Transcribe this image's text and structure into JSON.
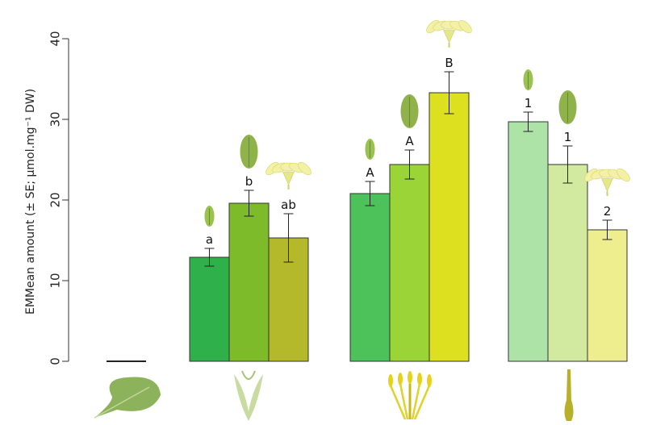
{
  "chart_data": {
    "type": "bar",
    "ylabel": "EMMean amount (± SE; µmol.mg⁻¹ DW)",
    "xlabel": "",
    "ylim": [
      0,
      40
    ],
    "yticks": [
      0,
      10,
      20,
      30,
      40
    ],
    "grid": false,
    "legend": "none",
    "groups": [
      {
        "organ_icon": "leaf-icon",
        "bars": [
          {
            "value": 0,
            "se": 0,
            "sig": "",
            "color": "#222222",
            "stage_icon": ""
          }
        ]
      },
      {
        "organ_icon": "sepal-bud-icon",
        "bars": [
          {
            "value": 12.9,
            "se": 1.1,
            "sig": "a",
            "color": "#2fb04a",
            "stage_icon": "small-bud-icon"
          },
          {
            "value": 19.6,
            "se": 1.6,
            "sig": "b",
            "color": "#7dbb2a",
            "stage_icon": "large-bud-icon"
          },
          {
            "value": 15.3,
            "se": 3.0,
            "sig": "ab",
            "color": "#b3b92a",
            "stage_icon": "open-flower-icon"
          }
        ]
      },
      {
        "organ_icon": "stamen-icon",
        "bars": [
          {
            "value": 20.8,
            "se": 1.5,
            "sig": "A",
            "color": "#4dc25a",
            "stage_icon": "small-bud-icon"
          },
          {
            "value": 24.4,
            "se": 1.8,
            "sig": "A",
            "color": "#9ad436",
            "stage_icon": "large-bud-icon"
          },
          {
            "value": 33.3,
            "se": 2.6,
            "sig": "B",
            "color": "#dde01e",
            "stage_icon": "open-flower-icon"
          }
        ]
      },
      {
        "organ_icon": "pistil-icon",
        "bars": [
          {
            "value": 29.7,
            "se": 1.2,
            "sig": "1",
            "color": "#aee3a8",
            "stage_icon": "small-bud-icon"
          },
          {
            "value": 24.4,
            "se": 2.3,
            "sig": "1",
            "color": "#d2eaa0",
            "stage_icon": "large-bud-icon"
          },
          {
            "value": 16.3,
            "se": 1.2,
            "sig": "2",
            "color": "#eeee8e",
            "stage_icon": "open-flower-icon"
          }
        ]
      }
    ]
  }
}
